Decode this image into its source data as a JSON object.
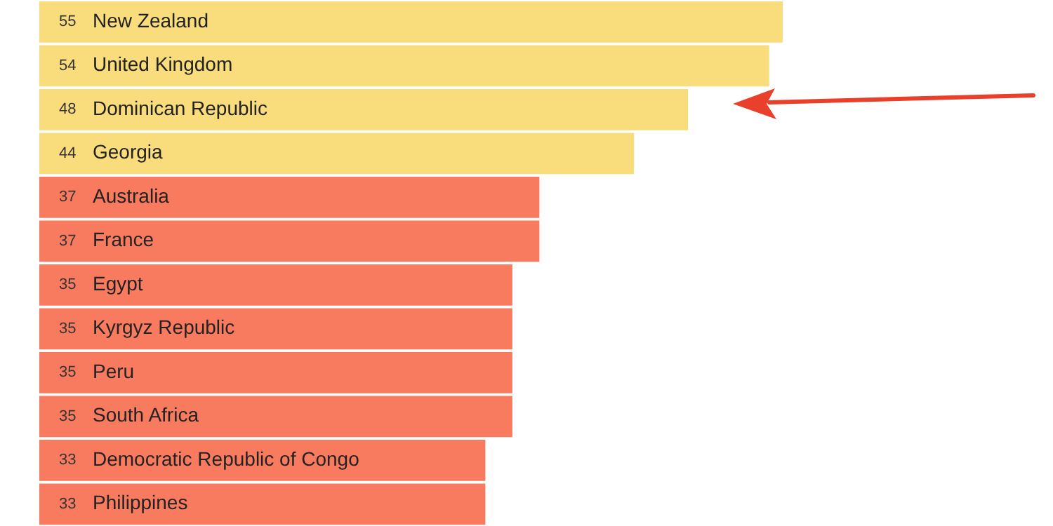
{
  "chart_data": {
    "type": "bar",
    "orientation": "horizontal",
    "categories": [
      "New Zealand",
      "United Kingdom",
      "Dominican Republic",
      "Georgia",
      "Australia",
      "France",
      "Egypt",
      "Kyrgyz Republic",
      "Peru",
      "South Africa",
      "Democratic Republic of Congo",
      "Philippines"
    ],
    "values": [
      55,
      54,
      48,
      44,
      37,
      37,
      35,
      35,
      35,
      35,
      33,
      33
    ],
    "colors": [
      "#f9dc7b",
      "#f9dc7b",
      "#f9dc7b",
      "#f9dc7b",
      "#f97b5f",
      "#f97b5f",
      "#f97b5f",
      "#f97b5f",
      "#f97b5f",
      "#f97b5f",
      "#f97b5f",
      "#f97b5f"
    ],
    "xlim": [
      0,
      75
    ],
    "data_labels": true
  }
}
